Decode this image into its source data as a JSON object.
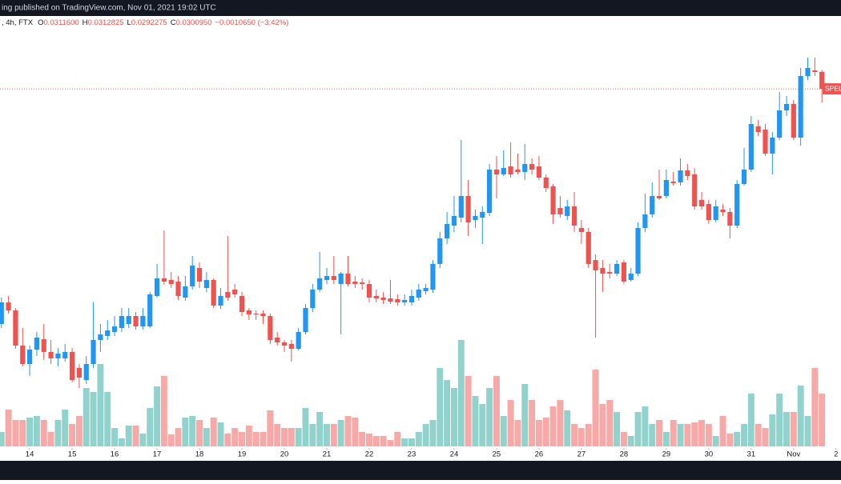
{
  "chart_data": {
    "type": "candlestick",
    "header": {
      "published": "ing published on TradingView.com, Nov 01, 2021 19:02 UTC",
      "prefix": ", 4h, FTX",
      "ohlc": [
        {
          "key": "O",
          "value": "0.0311600"
        },
        {
          "key": "H",
          "value": "0.0312825"
        },
        {
          "key": "L",
          "value": "0.0292275"
        },
        {
          "key": "C",
          "value": "0.0300950"
        }
      ],
      "change": "−0.0010650 (−3.42%)"
    },
    "symbol_label": "SPELL",
    "up_color": "#2196f3",
    "down_color": "#ef5350",
    "volume_up_color": "#92d2cc",
    "volume_down_color": "#f7a9a7",
    "xlim": [
      -0.2,
      118.7
    ],
    "xticks": [
      {
        "value": 4,
        "label": "14"
      },
      {
        "value": 10,
        "label": "15"
      },
      {
        "value": 16,
        "label": "16"
      },
      {
        "value": 22,
        "label": "17"
      },
      {
        "value": 28,
        "label": "18"
      },
      {
        "value": 34,
        "label": "19"
      },
      {
        "value": 40,
        "label": "20"
      },
      {
        "value": 46,
        "label": "21"
      },
      {
        "value": 52,
        "label": "22"
      },
      {
        "value": 58,
        "label": "23"
      },
      {
        "value": 64,
        "label": "24"
      },
      {
        "value": 70,
        "label": "25"
      },
      {
        "value": 76,
        "label": "26"
      },
      {
        "value": 82,
        "label": "27"
      },
      {
        "value": 88,
        "label": "28"
      },
      {
        "value": 94,
        "label": "29"
      },
      {
        "value": 100,
        "label": "30"
      },
      {
        "value": 106,
        "label": "31"
      },
      {
        "value": 112,
        "label": "Nov"
      },
      {
        "value": 118,
        "label": "2"
      }
    ],
    "ylim": [
      0.00715,
      0.03565
    ],
    "y2lim": [
      0,
      558
    ],
    "open": [
      0.0154,
      0.01675,
      0.01625,
      0.01405,
      0.0129,
      0.0138,
      0.01445,
      0.01365,
      0.01325,
      0.01325,
      0.01365,
      0.01265,
      0.0119,
      0.0129,
      0.0144,
      0.01465,
      0.0149,
      0.01515,
      0.0154,
      0.0159,
      0.01525,
      0.01525,
      0.01715,
      0.01825,
      0.01815,
      0.01805,
      0.01705,
      0.01775,
      0.0189,
      0.01765,
      0.01815,
      0.01655,
      0.0174,
      0.01755,
      0.01715,
      0.01625,
      0.01605,
      0.01605,
      0.0159,
      0.01455,
      0.01425,
      0.01415,
      0.01385,
      0.0149,
      0.0164,
      0.01755,
      0.01815,
      0.0184,
      0.0179,
      0.01855,
      0.01805,
      0.018,
      0.0179,
      0.01715,
      0.01705,
      0.017,
      0.01695,
      0.01675,
      0.01675,
      0.01705,
      0.01745,
      0.01755,
      0.01915,
      0.02075,
      0.02155,
      0.02205,
      0.0234,
      0.0219,
      0.02205,
      0.02235,
      0.02505,
      0.02475,
      0.02525,
      0.02505,
      0.0249,
      0.0254,
      0.02525,
      0.02455,
      0.024,
      0.02265,
      0.02215,
      0.02275,
      0.0214,
      0.02115,
      0.0194,
      0.0189,
      0.01865,
      0.01855,
      0.01925,
      0.01815,
      0.01855,
      0.0214,
      0.02225,
      0.0234,
      0.0234,
      0.0243,
      0.02425,
      0.025,
      0.02475,
      0.02315,
      0.0229,
      0.0219,
      0.02255,
      0.0224,
      0.02155,
      0.02415,
      0.02505,
      0.02775,
      0.02755,
      0.02605,
      0.02705,
      0.02875,
      0.02915,
      0.02705,
      0.0309,
      0.03125,
      0.03116
    ],
    "high": [
      0.01705,
      0.01715,
      0.0164,
      0.01515,
      0.01405,
      0.0149,
      0.0154,
      0.0144,
      0.0139,
      0.01415,
      0.0139,
      0.0129,
      0.0134,
      0.01675,
      0.0154,
      0.01565,
      0.0159,
      0.0164,
      0.0164,
      0.01615,
      0.0164,
      0.0174,
      0.01915,
      0.02125,
      0.01865,
      0.0184,
      0.0184,
      0.01965,
      0.01925,
      0.01865,
      0.01825,
      0.01765,
      0.0209,
      0.0179,
      0.0174,
      0.0164,
      0.01625,
      0.01625,
      0.01605,
      0.0149,
      0.0144,
      0.0144,
      0.01515,
      0.01665,
      0.0179,
      0.0199,
      0.0189,
      0.01965,
      0.01865,
      0.01965,
      0.0184,
      0.01825,
      0.01815,
      0.01755,
      0.0174,
      0.01815,
      0.01725,
      0.01725,
      0.01755,
      0.0179,
      0.0179,
      0.0194,
      0.02115,
      0.0224,
      0.0234,
      0.0269,
      0.0244,
      0.02255,
      0.02275,
      0.0254,
      0.0259,
      0.02625,
      0.02675,
      0.02605,
      0.02665,
      0.02575,
      0.0259,
      0.02475,
      0.02415,
      0.0234,
      0.02315,
      0.02365,
      0.0219,
      0.0214,
      0.01975,
      0.0194,
      0.01915,
      0.0194,
      0.0194,
      0.0189,
      0.02175,
      0.02355,
      0.02425,
      0.02505,
      0.02505,
      0.0249,
      0.02575,
      0.0254,
      0.02515,
      0.02365,
      0.02315,
      0.02315,
      0.0229,
      0.02265,
      0.0244,
      0.0264,
      0.0284,
      0.02815,
      0.0279,
      0.0274,
      0.0299,
      0.02965,
      0.0294,
      0.0314,
      0.03205,
      0.03205,
      0.0312825
    ],
    "low": [
      0.01515,
      0.01605,
      0.01385,
      0.01275,
      0.01215,
      0.0134,
      0.01315,
      0.0129,
      0.01275,
      0.01305,
      0.01175,
      0.0114,
      0.01165,
      0.01265,
      0.01365,
      0.0144,
      0.01465,
      0.0149,
      0.01515,
      0.01505,
      0.01505,
      0.01515,
      0.01705,
      0.01785,
      0.01765,
      0.0169,
      0.01685,
      0.01755,
      0.01765,
      0.0174,
      0.0164,
      0.01635,
      0.01685,
      0.01705,
      0.0159,
      0.01565,
      0.01565,
      0.0154,
      0.01415,
      0.01405,
      0.01365,
      0.01305,
      0.01375,
      0.01475,
      0.01615,
      0.0174,
      0.0179,
      0.0179,
      0.01475,
      0.01775,
      0.01765,
      0.01755,
      0.01675,
      0.01675,
      0.01665,
      0.01665,
      0.01655,
      0.01655,
      0.01655,
      0.01685,
      0.01725,
      0.01735,
      0.0189,
      0.0204,
      0.02115,
      0.02175,
      0.0209,
      0.0214,
      0.0204,
      0.02215,
      0.02325,
      0.02465,
      0.02455,
      0.02475,
      0.0244,
      0.02475,
      0.0244,
      0.02365,
      0.02165,
      0.02205,
      0.0219,
      0.02115,
      0.0204,
      0.0189,
      0.01455,
      0.0174,
      0.01825,
      0.0184,
      0.0179,
      0.01805,
      0.0184,
      0.02115,
      0.02205,
      0.02315,
      0.02325,
      0.02405,
      0.02405,
      0.0244,
      0.02255,
      0.02255,
      0.02165,
      0.02175,
      0.02215,
      0.02075,
      0.0214,
      0.02405,
      0.0249,
      0.02715,
      0.0259,
      0.02475,
      0.0269,
      0.0284,
      0.0269,
      0.02655,
      0.03065,
      0.0309,
      0.0292275
    ],
    "close": [
      0.01675,
      0.01625,
      0.01405,
      0.0129,
      0.0138,
      0.01455,
      0.01365,
      0.01325,
      0.01355,
      0.01365,
      0.0119,
      0.01205,
      0.0129,
      0.0144,
      0.01475,
      0.015,
      0.01525,
      0.0159,
      0.0159,
      0.01525,
      0.0159,
      0.01725,
      0.01825,
      0.01805,
      0.0179,
      0.01715,
      0.01775,
      0.01905,
      0.01805,
      0.01815,
      0.01655,
      0.01715,
      0.01705,
      0.01725,
      0.01615,
      0.016,
      0.016,
      0.0159,
      0.0144,
      0.01425,
      0.01405,
      0.01385,
      0.0149,
      0.0164,
      0.01755,
      0.01825,
      0.0184,
      0.01815,
      0.01855,
      0.0179,
      0.0179,
      0.0179,
      0.01705,
      0.017,
      0.0169,
      0.0168,
      0.01675,
      0.0169,
      0.01715,
      0.01755,
      0.01765,
      0.01915,
      0.02075,
      0.02165,
      0.02215,
      0.0234,
      0.02175,
      0.02215,
      0.0224,
      0.02505,
      0.02475,
      0.02515,
      0.02475,
      0.0249,
      0.0254,
      0.02505,
      0.02455,
      0.0239,
      0.02225,
      0.02225,
      0.02275,
      0.02155,
      0.02115,
      0.01915,
      0.01875,
      0.01855,
      0.01855,
      0.01915,
      0.01805,
      0.01855,
      0.0214,
      0.02225,
      0.0234,
      0.02325,
      0.0244,
      0.0242,
      0.025,
      0.02465,
      0.02275,
      0.02275,
      0.0219,
      0.02275,
      0.0224,
      0.02155,
      0.02415,
      0.02505,
      0.0279,
      0.0274,
      0.02605,
      0.02705,
      0.02875,
      0.02915,
      0.02705,
      0.0309,
      0.0314,
      0.03115,
      0.030095
    ],
    "volume": [
      18,
      46,
      33,
      33,
      36,
      38,
      33,
      18,
      33,
      46,
      28,
      38,
      73,
      68,
      103,
      68,
      23,
      10,
      26,
      26,
      16,
      48,
      75,
      88,
      15,
      23,
      36,
      38,
      33,
      23,
      36,
      30,
      16,
      23,
      18,
      26,
      18,
      18,
      45,
      28,
      23,
      23,
      23,
      48,
      28,
      43,
      28,
      28,
      33,
      38,
      36,
      18,
      16,
      13,
      13,
      8,
      18,
      10,
      10,
      18,
      28,
      33,
      98,
      83,
      73,
      133,
      88,
      63,
      53,
      73,
      88,
      38,
      58,
      33,
      78,
      58,
      33,
      36,
      50,
      58,
      45,
      28,
      23,
      28,
      96,
      53,
      58,
      43,
      18,
      13,
      43,
      50,
      28,
      33,
      18,
      33,
      28,
      28,
      30,
      33,
      28,
      13,
      38,
      16,
      18,
      28,
      66,
      28,
      23,
      40,
      66,
      43,
      43,
      76,
      38,
      98,
      66
    ]
  }
}
